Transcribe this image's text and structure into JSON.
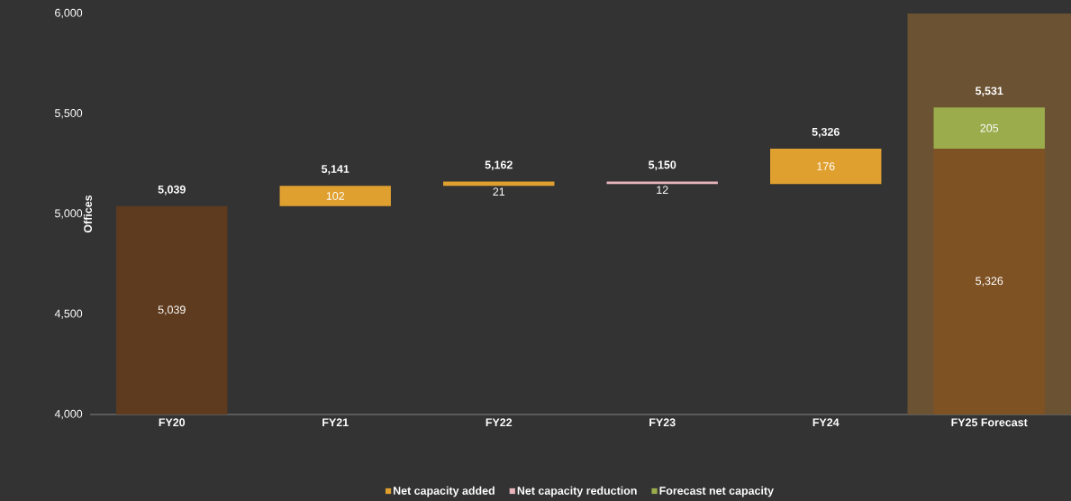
{
  "chart_data": {
    "type": "bar",
    "ylabel": "Offices",
    "categories": [
      "FY20",
      "FY21",
      "FY22",
      "FY23",
      "FY24",
      "FY25 Forecast"
    ],
    "series": [
      {
        "color": "#5e3b1e",
        "colors": [
          "#5e3b1e",
          null,
          null,
          null,
          null,
          "#7f5224"
        ],
        "values": [
          5039,
          null,
          null,
          null,
          null,
          5326
        ],
        "value_labels": [
          "5,039",
          null,
          null,
          null,
          null,
          "5,326"
        ]
      },
      {
        "name": "Net capacity added",
        "color": "#e0a030",
        "values": [
          null,
          102,
          21,
          null,
          176,
          null
        ],
        "base": [
          null,
          5039,
          5141,
          null,
          5150,
          null
        ],
        "value_labels": [
          null,
          "102",
          "21",
          null,
          "176",
          null
        ]
      },
      {
        "name": "Net capacity reduction",
        "color": "#e8b4bc",
        "values": [
          null,
          null,
          null,
          -12,
          null,
          null
        ],
        "base": [
          null,
          null,
          null,
          5162,
          null,
          null
        ],
        "value_labels": [
          null,
          null,
          null,
          "12",
          null,
          null
        ]
      },
      {
        "name": "Forecast net capacity",
        "color": "#9aac4c",
        "values": [
          null,
          null,
          null,
          null,
          null,
          205
        ],
        "base": [
          null,
          null,
          null,
          null,
          null,
          5326
        ],
        "value_labels": [
          null,
          null,
          null,
          null,
          null,
          "205"
        ]
      }
    ],
    "annotations": [
      {
        "text": "5,039",
        "x": "FY20",
        "y": 5039
      },
      {
        "text": "5,141",
        "x": "FY21",
        "y": 5141
      },
      {
        "text": "5,162",
        "x": "FY22",
        "y": 5162
      },
      {
        "text": "5,150",
        "x": "FY23",
        "y": 5150
      },
      {
        "text": "5,326",
        "x": "FY24",
        "y": 5326
      },
      {
        "text": "5,531",
        "x": "FY25 Forecast",
        "y": 5531
      }
    ],
    "bands": [
      {
        "axis": "x",
        "from": "FY25 Forecast",
        "to": "FY25 Forecast",
        "color": "#6b5233"
      }
    ],
    "ylim": [
      4000,
      6000
    ],
    "yticks": [
      {
        "value": 4000,
        "label": "4,000"
      },
      {
        "value": 4500,
        "label": "4,500"
      },
      {
        "value": 5000,
        "label": "5,000"
      },
      {
        "value": 5500,
        "label": "5,500"
      },
      {
        "value": 6000,
        "label": "6,000"
      }
    ],
    "grid": false,
    "legend": "bottom"
  }
}
